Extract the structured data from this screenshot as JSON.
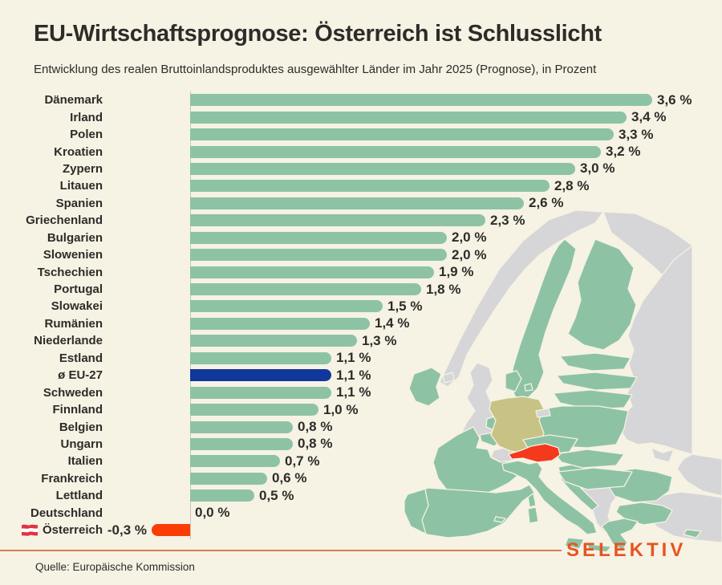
{
  "header": {
    "title": "EU-Wirtschaftsprognose: Österreich ist Schlusslicht",
    "subtitle": "Entwicklung des realen Bruttoinlandsproduktes ausgewählter Länder im Jahr 2025 (Prognose), in Prozent"
  },
  "footer": {
    "source": "Quelle: Europäische Kommission",
    "brand": "SELEKTIV"
  },
  "colors": {
    "background": "#f6f2e4",
    "text": "#2d2c29",
    "bar_green": "#8dc3a4",
    "eu27_blue": "#10379b",
    "negative_orange": "#fa3c05",
    "brand_orange": "#e8531f",
    "rule_orange": "#d97c54",
    "baseline_grey": "#c9c7bb",
    "map_eu": "#8dc3a4",
    "map_non_eu": "#d6d5d8",
    "map_germany": "#c8c285",
    "map_austria": "#f5391c",
    "flag_red": "#e03345",
    "flag_white": "#ffffff"
  },
  "chart_data": {
    "type": "bar",
    "orientation": "horizontal",
    "title": "EU-Wirtschaftsprognose: Österreich ist Schlusslicht",
    "subtitle": "Entwicklung des realen Bruttoinlandsproduktes ausgewählter Länder im Jahr 2025 (Prognose), in Prozent",
    "unit": "%",
    "xlim": [
      -0.3,
      3.6
    ],
    "grid": false,
    "legend": false,
    "source": "Quelle: Europäische Kommission",
    "rows": [
      {
        "label": "Dänemark",
        "value": 3.6,
        "display": "3,6 %"
      },
      {
        "label": "Irland",
        "value": 3.4,
        "display": "3,4 %"
      },
      {
        "label": "Polen",
        "value": 3.3,
        "display": "3,3 %"
      },
      {
        "label": "Kroatien",
        "value": 3.2,
        "display": "3,2 %"
      },
      {
        "label": "Zypern",
        "value": 3.0,
        "display": "3,0 %"
      },
      {
        "label": "Litauen",
        "value": 2.8,
        "display": "2,8 %"
      },
      {
        "label": "Spanien",
        "value": 2.6,
        "display": "2,6 %"
      },
      {
        "label": "Griechenland",
        "value": 2.3,
        "display": "2,3 %"
      },
      {
        "label": "Bulgarien",
        "value": 2.0,
        "display": "2,0 %"
      },
      {
        "label": "Slowenien",
        "value": 2.0,
        "display": "2,0 %"
      },
      {
        "label": "Tschechien",
        "value": 1.9,
        "display": "1,9 %"
      },
      {
        "label": "Portugal",
        "value": 1.8,
        "display": "1,8 %"
      },
      {
        "label": "Slowakei",
        "value": 1.5,
        "display": "1,5 %"
      },
      {
        "label": "Rumänien",
        "value": 1.4,
        "display": "1,4 %"
      },
      {
        "label": "Niederlande",
        "value": 1.3,
        "display": "1,3 %"
      },
      {
        "label": "Estland",
        "value": 1.1,
        "display": "1,1 %"
      },
      {
        "label": "ø EU-27",
        "value": 1.1,
        "display": "1,1 %",
        "highlight": "eu27"
      },
      {
        "label": "Schweden",
        "value": 1.1,
        "display": "1,1 %"
      },
      {
        "label": "Finnland",
        "value": 1.0,
        "display": "1,0 %"
      },
      {
        "label": "Belgien",
        "value": 0.8,
        "display": "0,8 %"
      },
      {
        "label": "Ungarn",
        "value": 0.8,
        "display": "0,8 %"
      },
      {
        "label": "Italien",
        "value": 0.7,
        "display": "0,7 %"
      },
      {
        "label": "Frankreich",
        "value": 0.6,
        "display": "0,6 %"
      },
      {
        "label": "Lettland",
        "value": 0.5,
        "display": "0,5 %"
      },
      {
        "label": "Deutschland",
        "value": 0.0,
        "display": "0,0 %"
      },
      {
        "label": "Österreich",
        "value": -0.3,
        "display": "-0,3 %",
        "highlight": "austria",
        "flag": "austria-flag-icon"
      }
    ]
  },
  "map": {
    "description": "Europe map: EU members green, Germany olive, Austria red, non-EU grey"
  }
}
